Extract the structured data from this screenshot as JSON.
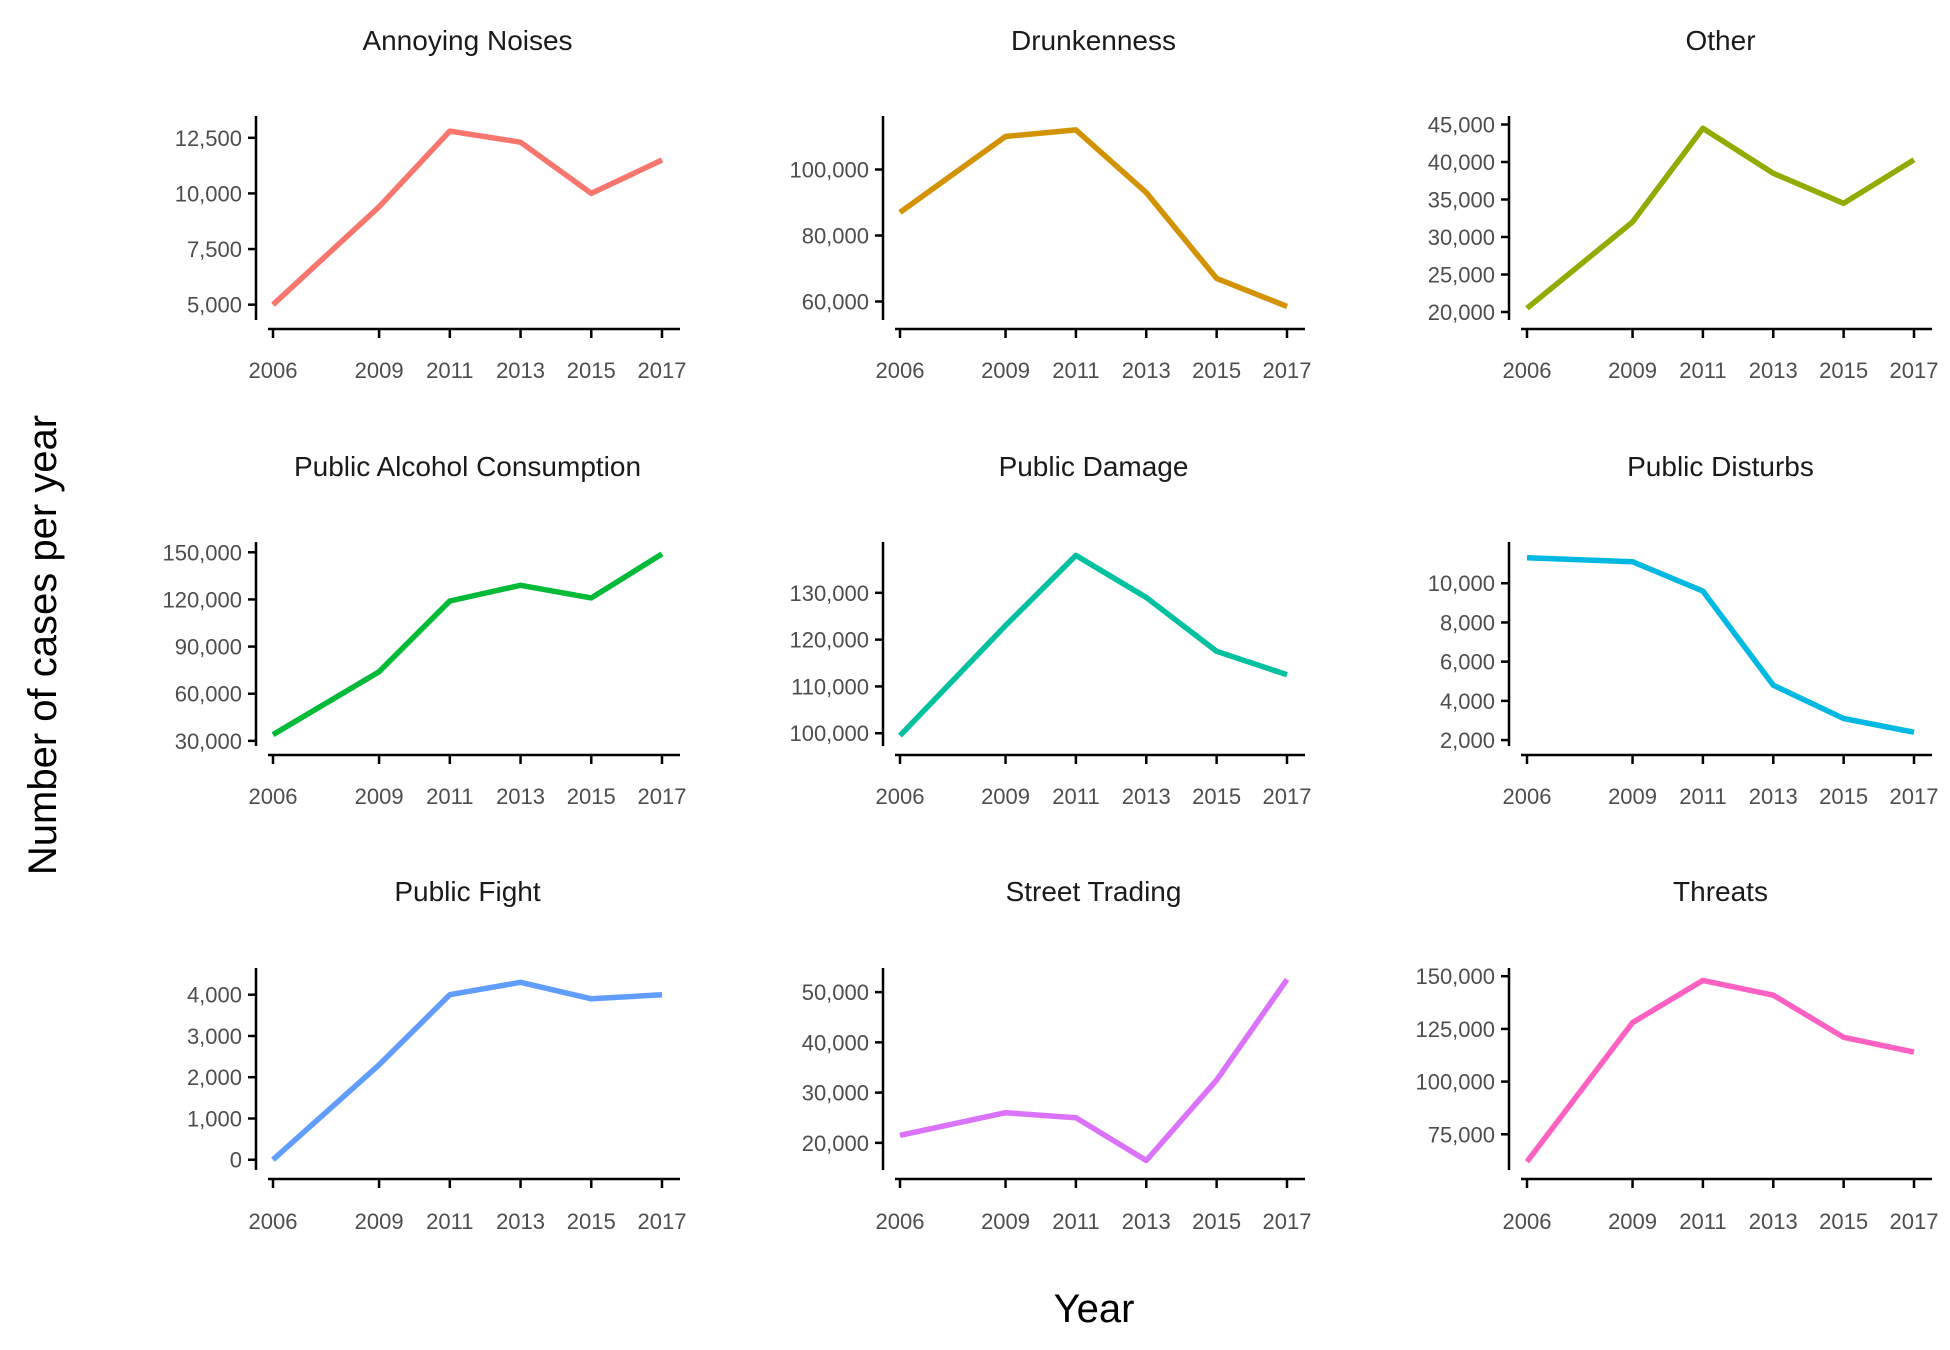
{
  "chart_data": {
    "type": "line",
    "layout": "facet-grid-3x3",
    "xlabel": "Year",
    "ylabel": "Number of cases per year",
    "x_ticks": [
      2006,
      2009,
      2011,
      2013,
      2015,
      2017
    ],
    "grid": false,
    "legend": "none",
    "panels": [
      {
        "title": "Annoying Noises",
        "color": "#F8766D",
        "x": [
          2006,
          2009,
          2011,
          2013,
          2015,
          2017
        ],
        "values": [
          5000,
          9400,
          12800,
          12300,
          10000,
          11500
        ],
        "yticks": [
          5000,
          7500,
          10000,
          12500
        ],
        "ytick_labels": [
          "5,000",
          "7,500",
          "10,000",
          "12,500"
        ],
        "ylim": [
          4400,
          13300
        ]
      },
      {
        "title": "Drunkenness",
        "color": "#D39200",
        "x": [
          2006,
          2009,
          2011,
          2013,
          2015,
          2017
        ],
        "values": [
          87000,
          110000,
          112000,
          93000,
          67000,
          58500
        ],
        "yticks": [
          60000,
          80000,
          100000
        ],
        "ytick_labels": [
          "60,000",
          "80,000",
          "100,000"
        ],
        "ylim": [
          55000,
          115000
        ]
      },
      {
        "title": "Other",
        "color": "#93AA00",
        "x": [
          2006,
          2009,
          2011,
          2013,
          2015,
          2017
        ],
        "values": [
          20500,
          32000,
          44500,
          38500,
          34500,
          40300
        ],
        "yticks": [
          20000,
          25000,
          30000,
          35000,
          40000,
          45000
        ],
        "ytick_labels": [
          "20,000",
          "25,000",
          "30,000",
          "35,000",
          "40,000",
          "45,000"
        ],
        "ylim": [
          19200,
          45600
        ]
      },
      {
        "title": "Public Alcohol Consumption",
        "color": "#00BA38",
        "x": [
          2006,
          2009,
          2011,
          2013,
          2015,
          2017
        ],
        "values": [
          34000,
          74000,
          119000,
          129000,
          121000,
          149000
        ],
        "yticks": [
          30000,
          60000,
          90000,
          120000,
          150000
        ],
        "ytick_labels": [
          "30,000",
          "60,000",
          "90,000",
          "120,000",
          "150,000"
        ],
        "ylim": [
          28000,
          154000
        ]
      },
      {
        "title": "Public Damage",
        "color": "#00C19F",
        "x": [
          2006,
          2009,
          2011,
          2013,
          2015,
          2017
        ],
        "values": [
          99500,
          123000,
          138000,
          129000,
          117500,
          112500
        ],
        "yticks": [
          100000,
          110000,
          120000,
          130000
        ],
        "ytick_labels": [
          "100,000",
          "110,000",
          "120,000",
          "130,000"
        ],
        "ylim": [
          97700,
          140000
        ]
      },
      {
        "title": "Public Disturbs",
        "color": "#00B9E3",
        "x": [
          2006,
          2009,
          2011,
          2013,
          2015,
          2017
        ],
        "values": [
          11300,
          11100,
          9600,
          4800,
          3100,
          2400
        ],
        "yticks": [
          2000,
          4000,
          6000,
          8000,
          10000
        ],
        "ytick_labels": [
          "2,000",
          "4,000",
          "6,000",
          "8,000",
          "10,000"
        ],
        "ylim": [
          1800,
          11900
        ]
      },
      {
        "title": "Public Fight",
        "color": "#619CFF",
        "x": [
          2006,
          2009,
          2011,
          2013,
          2015,
          2017
        ],
        "values": [
          0,
          2300,
          4000,
          4300,
          3900,
          4000
        ],
        "yticks": [
          0,
          1000,
          2000,
          3000,
          4000
        ],
        "ytick_labels": [
          "0",
          "1,000",
          "2,000",
          "3,000",
          "4,000"
        ],
        "ylim": [
          -200,
          4550
        ]
      },
      {
        "title": "Street Trading",
        "color": "#DB72FB",
        "x": [
          2006,
          2009,
          2011,
          2013,
          2015,
          2017
        ],
        "values": [
          21500,
          26000,
          25000,
          16500,
          32500,
          52500
        ],
        "yticks": [
          20000,
          30000,
          40000,
          50000
        ],
        "ytick_labels": [
          "20,000",
          "30,000",
          "40,000",
          "50,000"
        ],
        "ylim": [
          15000,
          54000
        ]
      },
      {
        "title": "Threats",
        "color": "#FF61C3",
        "x": [
          2006,
          2009,
          2011,
          2013,
          2015,
          2017
        ],
        "values": [
          62000,
          128000,
          148000,
          141000,
          121000,
          114000
        ],
        "yticks": [
          75000,
          100000,
          125000,
          150000
        ],
        "ytick_labels": [
          "75,000",
          "100,000",
          "125,000",
          "150,000"
        ],
        "ylim": [
          59000,
          152000
        ]
      }
    ]
  }
}
